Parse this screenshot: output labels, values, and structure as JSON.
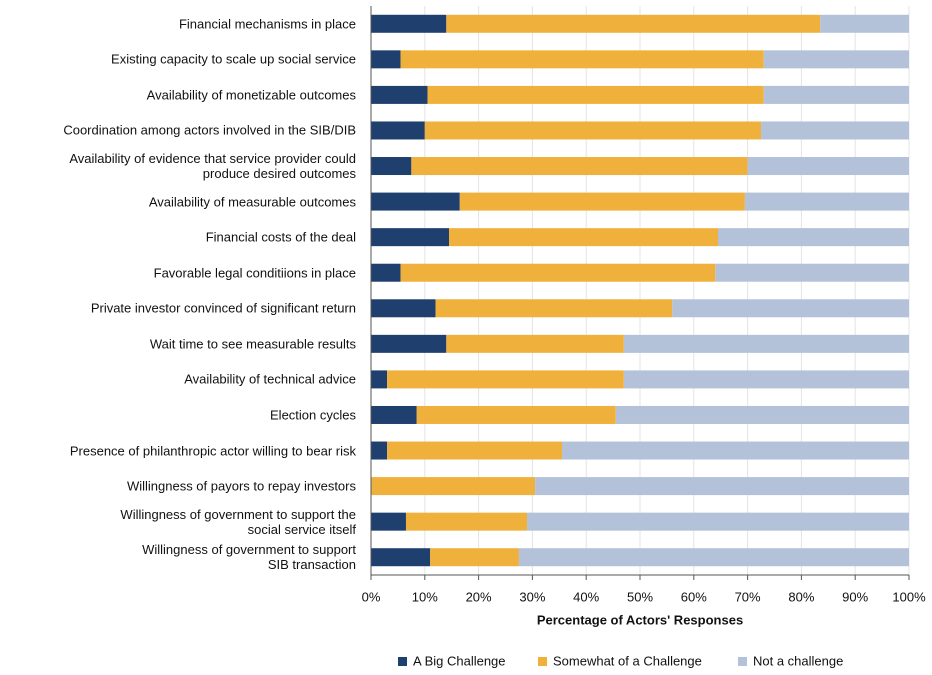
{
  "chart_data": {
    "type": "stacked_bar_horizontal",
    "x_label": "Percentage of Actors' Responses",
    "categories": [
      "Financial mechanisms in place",
      "Existing capacity to scale up social service",
      "Availability of monetizable outcomes",
      "Coordination among actors involved in the SIB/DIB",
      "Availability of evidence that service provider could\nproduce desired outcomes",
      "Availability of measurable outcomes",
      "Financial costs of the deal",
      "Favorable legal conditiions in place",
      "Private investor convinced of significant return",
      "Wait time to see measurable results",
      "Availability of technical advice",
      "Election cycles",
      "Presence of philanthropic actor willing to bear risk",
      "Willingness of payors to repay investors",
      "Willingness of government to support the\nsocial service itself",
      "Willingness of government to support\nSIB transaction"
    ],
    "series": [
      {
        "name": "A Big Challenge",
        "color": "#1f3f6e",
        "values": [
          14,
          5.5,
          10.5,
          10,
          7.5,
          16.5,
          14.5,
          5.5,
          12,
          14,
          3,
          8.5,
          3,
          0,
          6.5,
          11
        ]
      },
      {
        "name": "Somewhat of a Challenge",
        "color": "#f0b13c",
        "values": [
          69.5,
          67.5,
          62.5,
          62.5,
          62.5,
          53,
          50,
          58.5,
          44,
          33,
          44,
          37,
          32.5,
          30.5,
          22.5,
          16.5
        ]
      },
      {
        "name": "Not a challenge",
        "color": "#b3c1d9",
        "values": [
          16.5,
          27,
          27,
          27.5,
          30,
          30.5,
          35.5,
          36,
          44,
          53,
          53,
          54.5,
          64.5,
          69.5,
          71,
          72.5
        ]
      }
    ],
    "xlim": [
      0,
      100
    ],
    "xticks": [
      {
        "value": 0,
        "label": "0%"
      },
      {
        "value": 10,
        "label": "10%"
      },
      {
        "value": 20,
        "label": "20%"
      },
      {
        "value": 30,
        "label": "30%"
      },
      {
        "value": 40,
        "label": "40%"
      },
      {
        "value": 50,
        "label": "50%"
      },
      {
        "value": 60,
        "label": "60%"
      },
      {
        "value": 70,
        "label": "70%"
      },
      {
        "value": 80,
        "label": "80%"
      },
      {
        "value": 90,
        "label": "90%"
      },
      {
        "value": 100,
        "label": "100%"
      }
    ],
    "legend": "bottom"
  }
}
